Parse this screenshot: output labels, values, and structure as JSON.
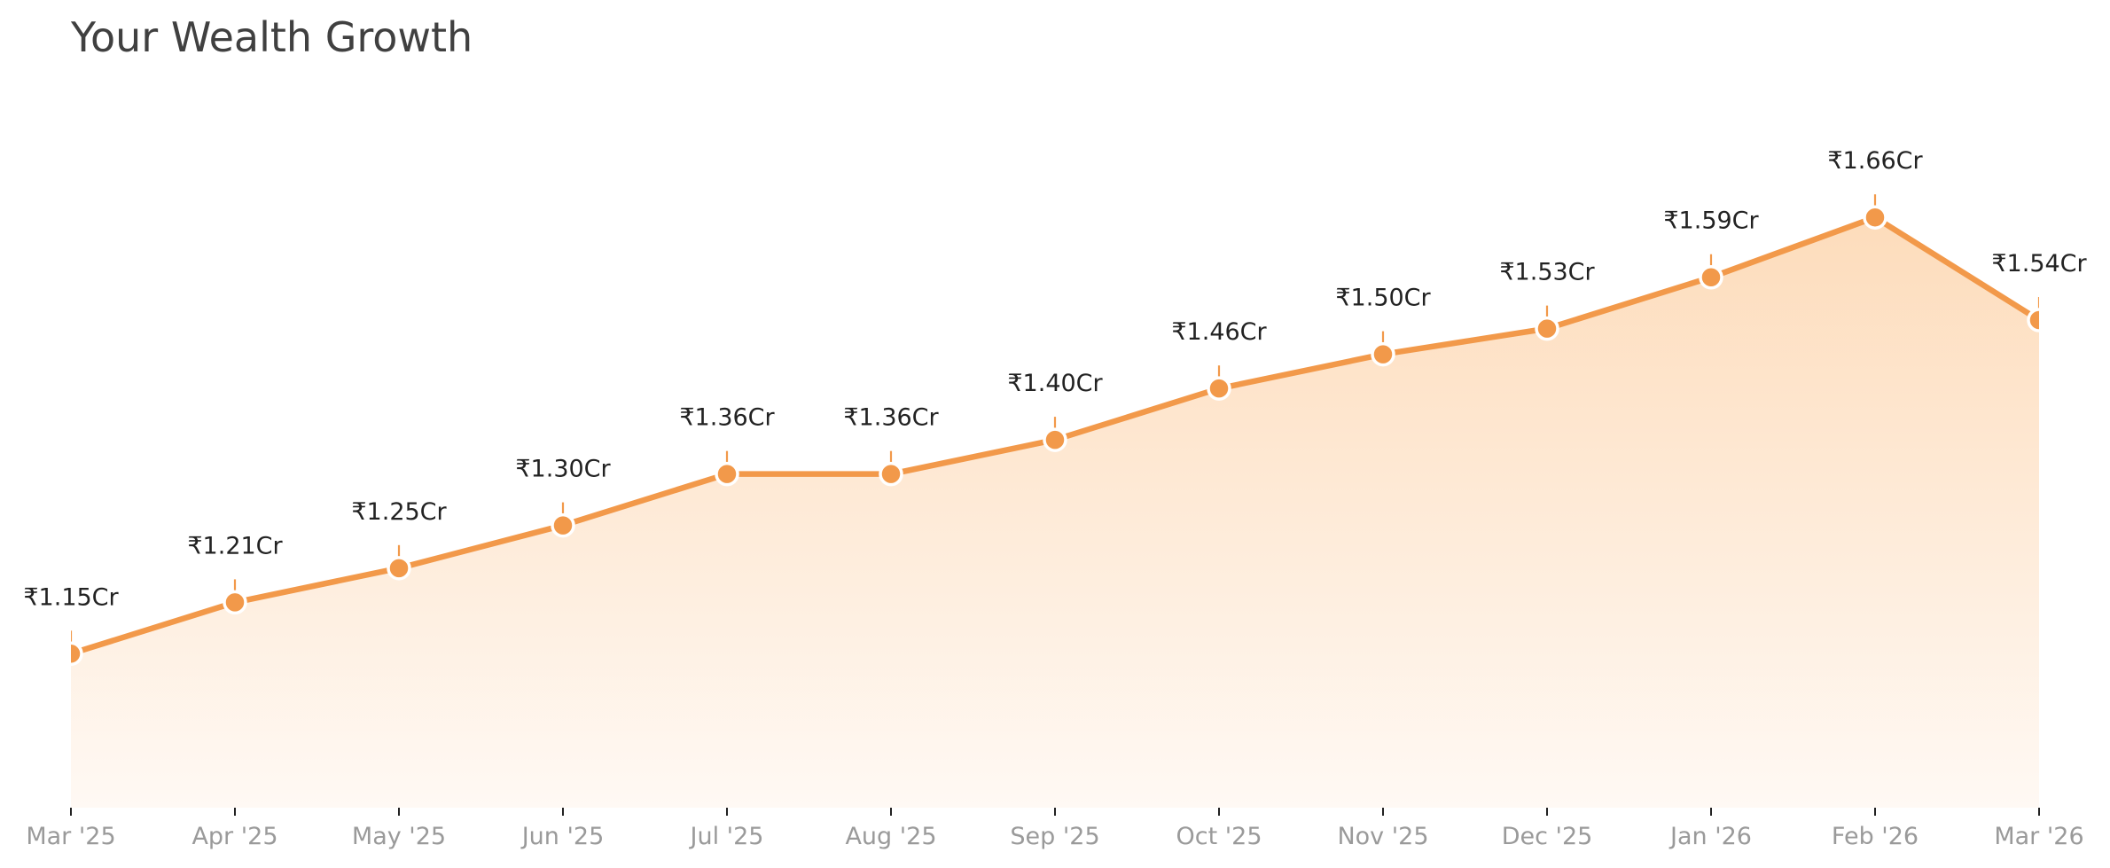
{
  "chart_data": {
    "type": "area",
    "title": "Your Wealth Growth",
    "xlabel": "",
    "ylabel": "",
    "categories": [
      "Mar '25",
      "Apr '25",
      "May '25",
      "Jun '25",
      "Jul '25",
      "Aug '25",
      "Sep '25",
      "Oct '25",
      "Nov '25",
      "Dec '25",
      "Jan '26",
      "Feb '26",
      "Mar '26"
    ],
    "values": [
      1.15,
      1.21,
      1.25,
      1.3,
      1.36,
      1.36,
      1.4,
      1.46,
      1.5,
      1.53,
      1.59,
      1.66,
      1.54
    ],
    "value_unit": "Cr",
    "data_labels": [
      "₹1.15Cr",
      "₹1.21Cr",
      "₹1.25Cr",
      "₹1.30Cr",
      "₹1.36Cr",
      "₹1.36Cr",
      "₹1.40Cr",
      "₹1.46Cr",
      "₹1.50Cr",
      "₹1.53Cr",
      "₹1.59Cr",
      "₹1.66Cr",
      "₹1.54Cr"
    ],
    "ylim": [
      0.97,
      1.74
    ],
    "y_axis_visible": false,
    "grid": false,
    "legend": "none",
    "colors": {
      "line": "#F2994A",
      "fill_top": "#FDDCBB",
      "fill_bottom": "#FFF9F4",
      "marker_edge": "#FFFFFF"
    }
  }
}
